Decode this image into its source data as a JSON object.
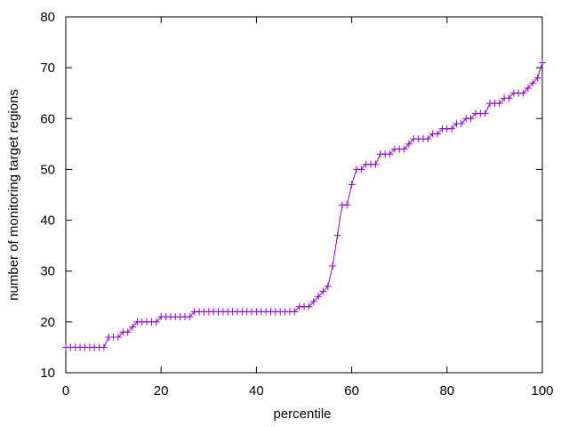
{
  "chart_data": {
    "type": "line",
    "title": "",
    "xlabel": "percentile",
    "ylabel": "number of monitoring target regions",
    "xlim": [
      0,
      100
    ],
    "ylim": [
      10,
      80
    ],
    "xticks": [
      0,
      20,
      40,
      60,
      80,
      100
    ],
    "yticks": [
      10,
      20,
      30,
      40,
      50,
      60,
      70,
      80
    ],
    "grid": false,
    "legend": "none",
    "marker": "plus",
    "color": "#9400d3",
    "series": [
      {
        "x": [
          0,
          1,
          2,
          3,
          4,
          5,
          6,
          7,
          8,
          9,
          10,
          11,
          12,
          13,
          14,
          15,
          16,
          17,
          18,
          19,
          20,
          21,
          22,
          23,
          24,
          25,
          26,
          27,
          28,
          29,
          30,
          31,
          32,
          33,
          34,
          35,
          36,
          37,
          38,
          39,
          40,
          41,
          42,
          43,
          44,
          45,
          46,
          47,
          48,
          49,
          50,
          51,
          52,
          53,
          54,
          55,
          56,
          57,
          58,
          59,
          60,
          61,
          62,
          63,
          64,
          65,
          66,
          67,
          68,
          69,
          70,
          71,
          72,
          73,
          74,
          75,
          76,
          77,
          78,
          79,
          80,
          81,
          82,
          83,
          84,
          85,
          86,
          87,
          88,
          89,
          90,
          91,
          92,
          93,
          94,
          95,
          96,
          97,
          98,
          99,
          100
        ],
        "y": [
          15,
          15,
          15,
          15,
          15,
          15,
          15,
          15,
          15,
          17,
          17,
          17,
          18,
          18,
          19,
          20,
          20,
          20,
          20,
          20,
          21,
          21,
          21,
          21,
          21,
          21,
          21,
          22,
          22,
          22,
          22,
          22,
          22,
          22,
          22,
          22,
          22,
          22,
          22,
          22,
          22,
          22,
          22,
          22,
          22,
          22,
          22,
          22,
          22,
          23,
          23,
          23,
          24,
          25,
          26,
          27,
          31,
          37,
          43,
          43,
          47,
          50,
          50,
          51,
          51,
          51,
          53,
          53,
          53,
          54,
          54,
          54,
          55,
          56,
          56,
          56,
          56,
          57,
          57,
          58,
          58,
          58,
          59,
          59,
          60,
          60,
          61,
          61,
          61,
          63,
          63,
          63,
          64,
          64,
          65,
          65,
          65,
          66,
          67,
          68,
          71
        ]
      }
    ]
  }
}
